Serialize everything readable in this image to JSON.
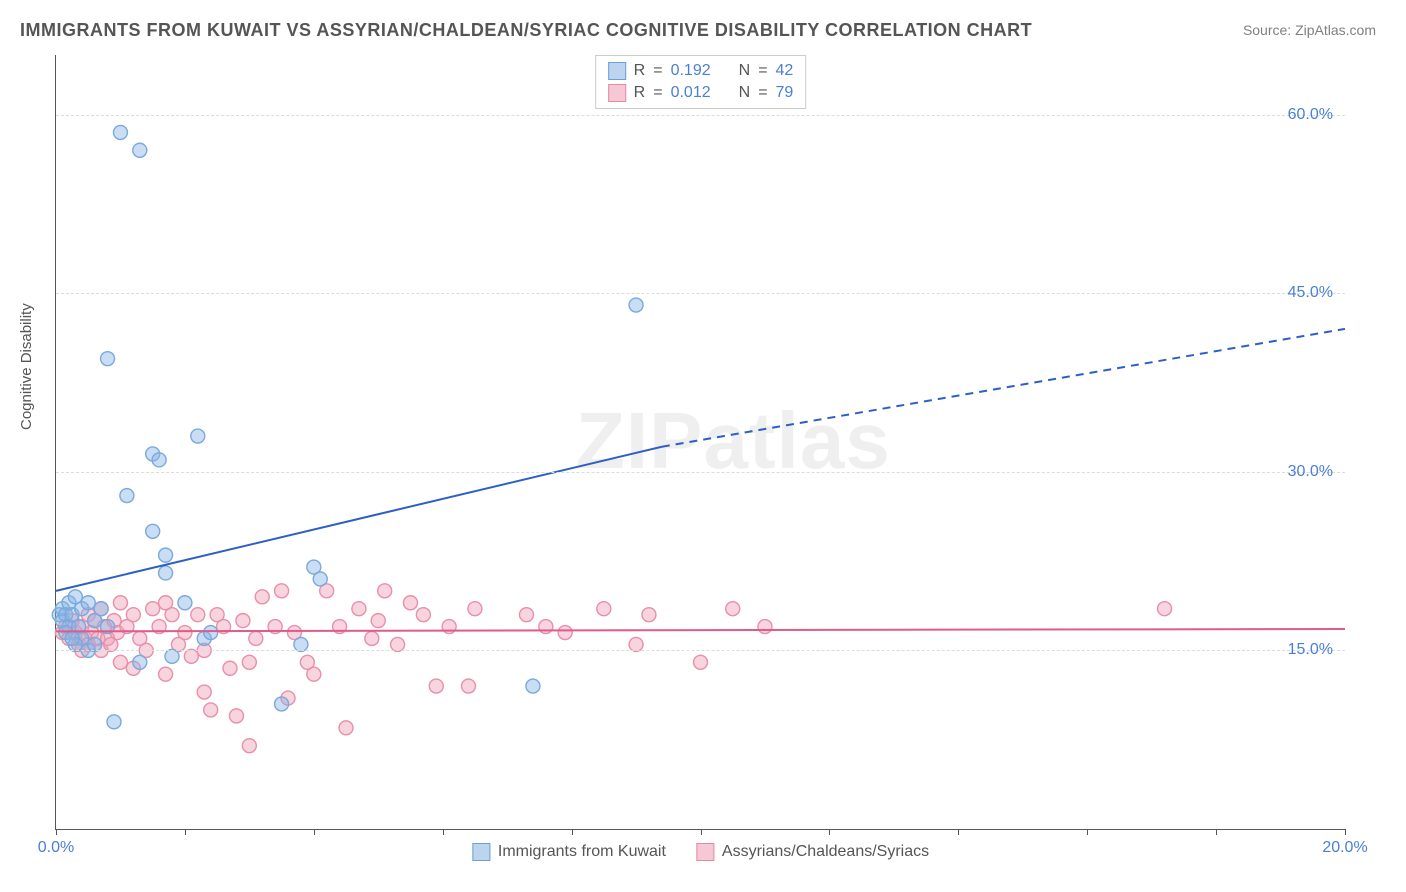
{
  "title": "IMMIGRANTS FROM KUWAIT VS ASSYRIAN/CHALDEAN/SYRIAC COGNITIVE DISABILITY CORRELATION CHART",
  "source": "Source: ZipAtlas.com",
  "ylabel": "Cognitive Disability",
  "watermark_left": "ZIP",
  "watermark_right": "atlas",
  "chart": {
    "type": "scatter",
    "xlim": [
      0,
      20
    ],
    "ylim": [
      0,
      65
    ],
    "x_ticks_minor_step": 2,
    "x_tick_labels": [
      {
        "x": 0,
        "label": "0.0%"
      },
      {
        "x": 20,
        "label": "20.0%"
      }
    ],
    "y_tick_labels": [
      {
        "y": 15,
        "label": "15.0%"
      },
      {
        "y": 30,
        "label": "30.0%"
      },
      {
        "y": 45,
        "label": "45.0%"
      },
      {
        "y": 60,
        "label": "60.0%"
      }
    ],
    "grid_color": "#dcdcdc",
    "background_color": "#ffffff",
    "axis_color": "#555555",
    "marker_radius": 7,
    "marker_stroke_width": 1.4,
    "series": [
      {
        "id": "kuwait",
        "label": "Immigrants from Kuwait",
        "fill": "rgba(135,180,230,0.45)",
        "stroke": "#7aa9db",
        "swatch_fill": "#bcd4ee",
        "swatch_stroke": "#6f9ed4",
        "R": "0.192",
        "N": "42",
        "trend": {
          "color": "#2d5fc4",
          "width": 2,
          "solid_from": [
            0,
            20
          ],
          "solid_to": [
            9.4,
            32.1
          ],
          "dash_to": [
            20,
            42.0
          ]
        },
        "points": [
          [
            0.05,
            18
          ],
          [
            0.1,
            17.5
          ],
          [
            0.1,
            18.5
          ],
          [
            0.15,
            18
          ],
          [
            0.2,
            17
          ],
          [
            0.2,
            19
          ],
          [
            0.25,
            18
          ],
          [
            0.3,
            19.5
          ],
          [
            0.35,
            17
          ],
          [
            0.4,
            18.5
          ],
          [
            0.4,
            16
          ],
          [
            0.5,
            19
          ],
          [
            0.6,
            17.5
          ],
          [
            0.7,
            18.5
          ],
          [
            0.8,
            17
          ],
          [
            0.3,
            15.5
          ],
          [
            0.5,
            15
          ],
          [
            0.6,
            15.5
          ],
          [
            0.8,
            39.5
          ],
          [
            0.9,
            9
          ],
          [
            1.0,
            58.5
          ],
          [
            1.3,
            57
          ],
          [
            1.5,
            25
          ],
          [
            1.5,
            31.5
          ],
          [
            1.6,
            31
          ],
          [
            1.7,
            21.5
          ],
          [
            1.7,
            23
          ],
          [
            1.1,
            28
          ],
          [
            1.3,
            14
          ],
          [
            1.8,
            14.5
          ],
          [
            2.0,
            19
          ],
          [
            2.2,
            33
          ],
          [
            2.3,
            16
          ],
          [
            2.4,
            16.5
          ],
          [
            3.5,
            10.5
          ],
          [
            3.8,
            15.5
          ],
          [
            4.0,
            22
          ],
          [
            4.1,
            21
          ],
          [
            7.4,
            12
          ],
          [
            9.0,
            44
          ],
          [
            0.15,
            16.5
          ],
          [
            0.25,
            16
          ]
        ]
      },
      {
        "id": "assyrian",
        "label": "Assyrians/Chaldeans/Syriacs",
        "fill": "rgba(240,160,185,0.45)",
        "stroke": "#e88fab",
        "swatch_fill": "#f6c7d4",
        "swatch_stroke": "#e38aa6",
        "R": "0.012",
        "N": "79",
        "trend": {
          "color": "#e05a8a",
          "width": 2,
          "solid_from": [
            0,
            16.6
          ],
          "solid_to": [
            20,
            16.8
          ]
        },
        "points": [
          [
            0.1,
            16.5
          ],
          [
            0.15,
            17
          ],
          [
            0.2,
            16
          ],
          [
            0.25,
            17.5
          ],
          [
            0.3,
            16.5
          ],
          [
            0.35,
            15.5
          ],
          [
            0.4,
            17
          ],
          [
            0.4,
            15
          ],
          [
            0.45,
            16
          ],
          [
            0.5,
            18
          ],
          [
            0.5,
            15.5
          ],
          [
            0.55,
            16.5
          ],
          [
            0.6,
            17.5
          ],
          [
            0.65,
            16
          ],
          [
            0.7,
            18.5
          ],
          [
            0.7,
            15
          ],
          [
            0.75,
            17
          ],
          [
            0.8,
            16
          ],
          [
            0.85,
            15.5
          ],
          [
            0.9,
            17.5
          ],
          [
            0.95,
            16.5
          ],
          [
            1.0,
            19
          ],
          [
            1.0,
            14
          ],
          [
            1.1,
            17
          ],
          [
            1.2,
            18
          ],
          [
            1.2,
            13.5
          ],
          [
            1.3,
            16
          ],
          [
            1.4,
            15
          ],
          [
            1.5,
            18.5
          ],
          [
            1.6,
            17
          ],
          [
            1.7,
            19
          ],
          [
            1.7,
            13
          ],
          [
            1.8,
            18
          ],
          [
            1.9,
            15.5
          ],
          [
            2.0,
            16.5
          ],
          [
            2.1,
            14.5
          ],
          [
            2.2,
            18
          ],
          [
            2.3,
            11.5
          ],
          [
            2.3,
            15
          ],
          [
            2.4,
            10
          ],
          [
            2.5,
            18
          ],
          [
            2.6,
            17
          ],
          [
            2.7,
            13.5
          ],
          [
            2.8,
            9.5
          ],
          [
            2.9,
            17.5
          ],
          [
            3.0,
            14
          ],
          [
            3.0,
            7
          ],
          [
            3.1,
            16
          ],
          [
            3.2,
            19.5
          ],
          [
            3.4,
            17
          ],
          [
            3.5,
            20
          ],
          [
            3.6,
            11
          ],
          [
            3.7,
            16.5
          ],
          [
            3.9,
            14
          ],
          [
            4.2,
            20
          ],
          [
            4.4,
            17
          ],
          [
            4.5,
            8.5
          ],
          [
            4.7,
            18.5
          ],
          [
            4.9,
            16
          ],
          [
            5.0,
            17.5
          ],
          [
            5.1,
            20
          ],
          [
            5.3,
            15.5
          ],
          [
            5.5,
            19
          ],
          [
            5.7,
            18
          ],
          [
            5.9,
            12
          ],
          [
            6.1,
            17
          ],
          [
            6.4,
            12
          ],
          [
            6.5,
            18.5
          ],
          [
            7.3,
            18
          ],
          [
            7.6,
            17
          ],
          [
            7.9,
            16.5
          ],
          [
            8.5,
            18.5
          ],
          [
            9.0,
            15.5
          ],
          [
            9.2,
            18
          ],
          [
            10.0,
            14
          ],
          [
            10.5,
            18.5
          ],
          [
            11.0,
            17
          ],
          [
            17.2,
            18.5
          ],
          [
            4.0,
            13
          ]
        ]
      }
    ]
  },
  "legend_top_labels": {
    "R": "R",
    "N": "N"
  },
  "colors": {
    "title": "#555555",
    "source": "#808080",
    "tick": "#4a7fd6"
  }
}
